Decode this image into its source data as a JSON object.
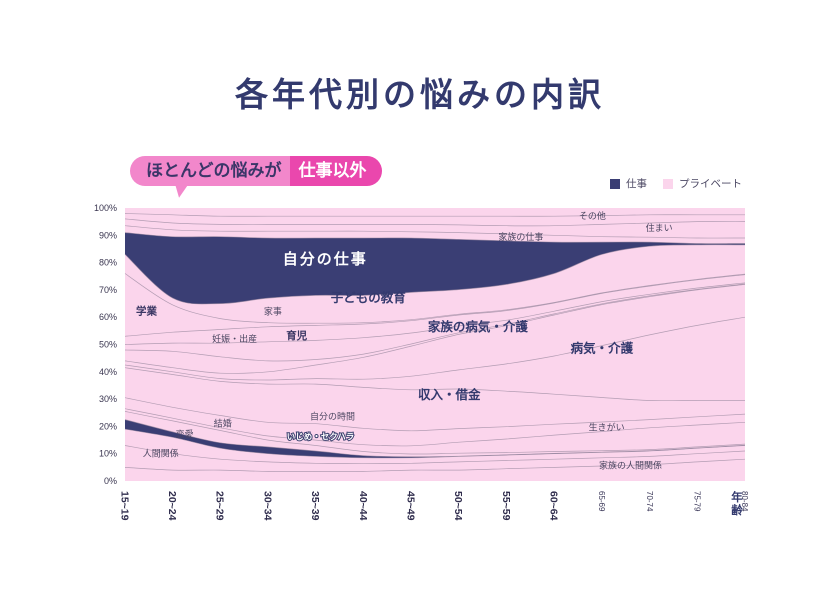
{
  "page": {
    "title": "各年代別の悩みの内訳"
  },
  "callout": {
    "prefix": "ほとんどの悩みが",
    "highlight": "仕事以外"
  },
  "legend": {
    "work": "仕事",
    "private": "プライベート"
  },
  "colors": {
    "work": "#3a3e74",
    "private": "#fbd5ec",
    "boundary": "#9b8aa0",
    "title": "#333a6e",
    "callout_pink": "#f287cb",
    "callout_magenta": "#ea47ad"
  },
  "chart_data": {
    "type": "area",
    "subtype": "stacked-area-100pct",
    "title": "各年代別の悩みの内訳",
    "x_axis_label": "年齢",
    "x_categories": [
      "15~19",
      "20~24",
      "25~29",
      "30~34",
      "35~39",
      "40~44",
      "45~49",
      "50~54",
      "55~59",
      "60~64",
      "65-69",
      "70-74",
      "75-79",
      "80-84"
    ],
    "x_large_label_count": 10,
    "y_ticks": [
      "0%",
      "10%",
      "20%",
      "30%",
      "40%",
      "50%",
      "60%",
      "70%",
      "80%",
      "90%",
      "100%"
    ],
    "ylim": [
      0,
      100
    ],
    "legend_position": "top-right",
    "series": [
      {
        "id": "family-relationships",
        "name": "家族の人間関係",
        "type": "private",
        "cumulative_top_pct": [
          5,
          4,
          4,
          3.5,
          3.5,
          3.5,
          4,
          4,
          4.5,
          5,
          5.5,
          6,
          7,
          8
        ]
      },
      {
        "id": "relationships",
        "name": "人間関係",
        "type": "private",
        "cumulative_top_pct": [
          13,
          10,
          8,
          7,
          6.5,
          6.5,
          6.5,
          7,
          7.5,
          8,
          8.5,
          9,
          10,
          11
        ]
      },
      {
        "id": "romance",
        "name": "恋愛",
        "type": "private",
        "cumulative_top_pct": [
          19,
          16,
          12,
          10,
          9,
          8.5,
          8.5,
          9,
          9.5,
          10,
          10.5,
          11,
          12,
          13
        ]
      },
      {
        "id": "bullying-harassment",
        "name": "いじめ・セクハラ",
        "type": "work",
        "cumulative_top_pct": [
          22.5,
          18,
          14,
          12.5,
          11,
          9.3,
          8.9,
          9.1,
          9.6,
          10.1,
          10.6,
          11.1,
          12.1,
          13.1
        ]
      },
      {
        "id": "marriage",
        "name": "結婚",
        "type": "private",
        "cumulative_top_pct": [
          25.5,
          22,
          18.5,
          15,
          13,
          10.8,
          9.9,
          10.2,
          10.4,
          10.8,
          11.1,
          11.5,
          12.5,
          13.5
        ]
      },
      {
        "id": "life-purpose",
        "name": "生きがい",
        "type": "private",
        "cumulative_top_pct": [
          26.5,
          23,
          19.5,
          16.5,
          15,
          13.3,
          12.9,
          14.2,
          15.4,
          16.8,
          18.1,
          19.5,
          20.5,
          21.5
        ]
      },
      {
        "id": "own-time",
        "name": "自分の時間",
        "type": "private",
        "cumulative_top_pct": [
          30.5,
          27,
          24,
          21.5,
          21,
          19.3,
          18.4,
          19.2,
          19.9,
          20.8,
          21.6,
          22.5,
          23.5,
          24.5
        ]
      },
      {
        "id": "income-debt",
        "name": "収入・借金",
        "type": "private",
        "cumulative_top_pct": [
          41.5,
          39,
          36.5,
          35.5,
          35.5,
          34.3,
          33.4,
          33.7,
          32.9,
          31.8,
          30.6,
          29.5,
          29.5,
          29.5
        ]
      },
      {
        "id": "illness-care",
        "name": "病気・介護",
        "type": "private",
        "cumulative_top_pct": [
          42.5,
          40,
          37.5,
          37,
          37.5,
          37.3,
          38.4,
          40.7,
          42.9,
          45.8,
          49.6,
          53.5,
          57,
          60
        ]
      },
      {
        "id": "family-illness-care",
        "name": "家族の病気・介護",
        "type": "private",
        "cumulative_top_pct": [
          44,
          41.5,
          39.5,
          40,
          42.5,
          45.3,
          49.4,
          53.7,
          56.9,
          60.8,
          64.6,
          67.5,
          70,
          72
        ]
      },
      {
        "id": "pregnancy-birth",
        "name": "妊娠・出産",
        "type": "private",
        "cumulative_top_pct": [
          48,
          47.5,
          45.5,
          44,
          44.5,
          46.5,
          50.2,
          54.3,
          57.4,
          61.2,
          64.9,
          67.8,
          70.2,
          72.2
        ]
      },
      {
        "id": "childcare",
        "name": "育児",
        "type": "private",
        "cumulative_top_pct": [
          50,
          50.5,
          50.5,
          51,
          51.5,
          52.5,
          54.2,
          56.8,
          58.9,
          62.2,
          65.7,
          68.4,
          70.7,
          72.6
        ]
      },
      {
        "id": "housework",
        "name": "家事",
        "type": "private",
        "cumulative_top_pct": [
          53,
          54.5,
          55.5,
          56.5,
          57,
          57.5,
          58.7,
          60.8,
          62.4,
          65.2,
          68.7,
          71.4,
          73.7,
          75.6
        ]
      },
      {
        "id": "studies",
        "name": "学業",
        "type": "private",
        "cumulative_top_pct": [
          76,
          64.5,
          59.5,
          58,
          57.8,
          58,
          59.1,
          61.1,
          62.7,
          65.4,
          68.9,
          71.6,
          73.9,
          75.8
        ]
      },
      {
        "id": "childrens-education",
        "name": "子どもの教育",
        "type": "private",
        "cumulative_top_pct": [
          83,
          67,
          65,
          67,
          68,
          68,
          69.1,
          70.1,
          72,
          76,
          83,
          86,
          86.5,
          86.5
        ]
      },
      {
        "id": "own-work",
        "name": "自分の仕事",
        "type": "work",
        "cumulative_top_pct": [
          91,
          89.5,
          89.5,
          89,
          89,
          89,
          89,
          88.5,
          88,
          87.5,
          87.5,
          87.5,
          87,
          87
        ]
      },
      {
        "id": "family-work",
        "name": "家族の仕事",
        "type": "private",
        "cumulative_top_pct": [
          93.5,
          92,
          91.5,
          91.5,
          91.5,
          91.5,
          91.3,
          91,
          90.5,
          90,
          89.5,
          89.3,
          89,
          89
        ]
      },
      {
        "id": "housing",
        "name": "住まい",
        "type": "private",
        "cumulative_top_pct": [
          96,
          94.5,
          94,
          94,
          94,
          94,
          94,
          93.8,
          93.5,
          93.5,
          94,
          94.5,
          95,
          95
        ]
      },
      {
        "id": "other",
        "name": "その他",
        "type": "private",
        "cumulative_top_pct": [
          98,
          97.5,
          97,
          97,
          97,
          97,
          97,
          97,
          97,
          97,
          97.2,
          97.5,
          97.5,
          97.5
        ]
      }
    ],
    "annotations": [
      {
        "id": "studies",
        "text": "学業",
        "x": 0.45,
        "y": 61,
        "cls": "md"
      },
      {
        "id": "relationships",
        "text": "人間関係",
        "x": 0.75,
        "y": 9,
        "cls": "sm"
      },
      {
        "id": "romance",
        "text": "恋愛",
        "x": 1.25,
        "y": 16,
        "cls": "sm"
      },
      {
        "id": "marriage",
        "text": "結婚",
        "x": 2.05,
        "y": 20,
        "cls": "sm"
      },
      {
        "id": "pregnancy-birth",
        "text": "妊娠・出産",
        "x": 2.3,
        "y": 51,
        "cls": "sm"
      },
      {
        "id": "housework",
        "text": "家事",
        "x": 3.1,
        "y": 61,
        "cls": "sm"
      },
      {
        "id": "childcare",
        "text": "育児",
        "x": 3.6,
        "y": 52,
        "cls": "md"
      },
      {
        "id": "bullying-harassment",
        "text": "いじめ・セクハラ",
        "x": 4.1,
        "y": 15.2,
        "cls": "outline"
      },
      {
        "id": "own-time",
        "text": "自分の時間",
        "x": 4.35,
        "y": 22.5,
        "cls": "sm"
      },
      {
        "id": "childrens-education",
        "text": "子どもの教育",
        "x": 5.1,
        "y": 65.5,
        "cls": "lg"
      },
      {
        "id": "own-work",
        "text": "自分の仕事",
        "x": 4.2,
        "y": 79.5,
        "cls": "white-lg"
      },
      {
        "id": "income-debt",
        "text": "収入・借金",
        "x": 6.8,
        "y": 30,
        "cls": "lg"
      },
      {
        "id": "family-illness-care",
        "text": "家族の病気・介護",
        "x": 7.4,
        "y": 55,
        "cls": "lg"
      },
      {
        "id": "illness-care",
        "text": "病気・介護",
        "x": 10,
        "y": 47,
        "cls": "lg"
      },
      {
        "id": "life-purpose",
        "text": "生きがい",
        "x": 10.1,
        "y": 18.5,
        "cls": "sm"
      },
      {
        "id": "family-relationships",
        "text": "家族の人間関係",
        "x": 10.6,
        "y": 4.5,
        "cls": "sm"
      },
      {
        "id": "family-work",
        "text": "家族の仕事",
        "x": 8.3,
        "y": 88.3,
        "cls": "sm"
      },
      {
        "id": "housing",
        "text": "住まい",
        "x": 11.2,
        "y": 91.5,
        "cls": "sm"
      },
      {
        "id": "other",
        "text": "その他",
        "x": 9.8,
        "y": 96,
        "cls": "sm"
      }
    ]
  }
}
